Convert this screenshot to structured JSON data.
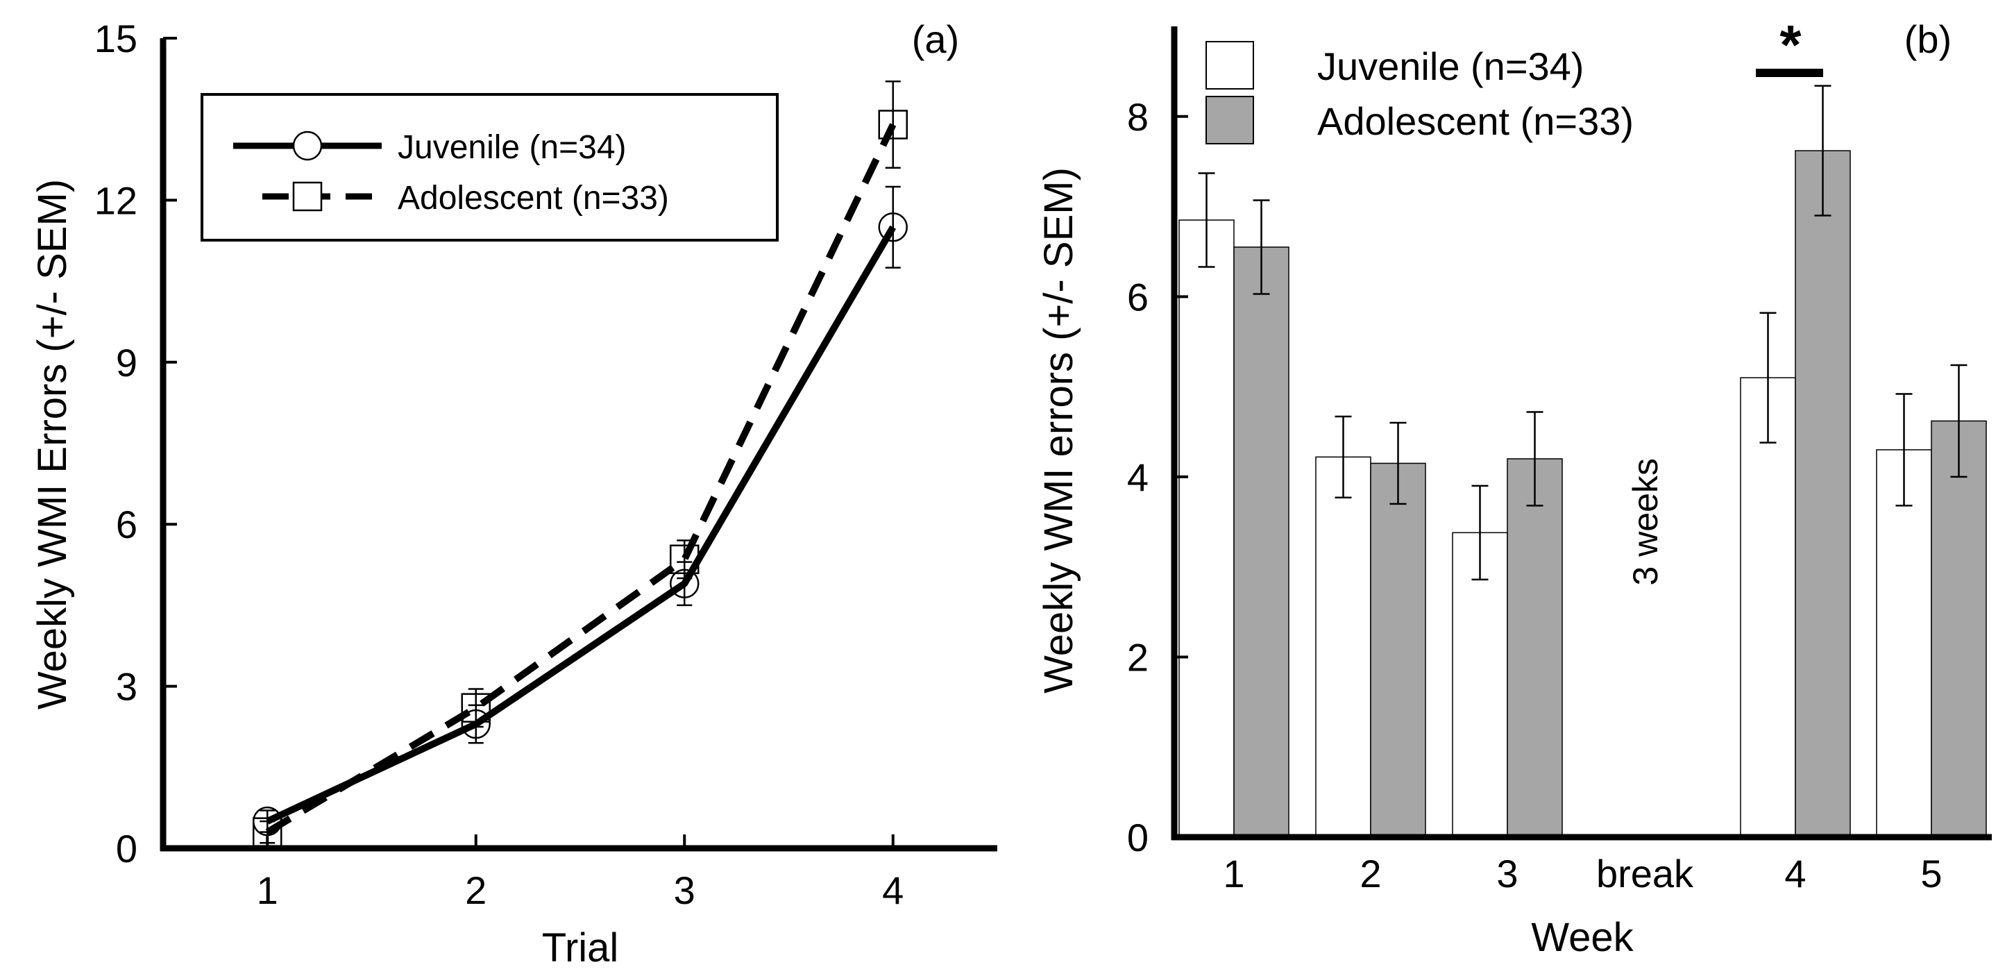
{
  "chart_data": [
    {
      "panel": "(a)",
      "type": "line",
      "title": "",
      "xlabel": "Trial",
      "ylabel": "Weekly WMI Errors (+/- SEM)",
      "x": [
        1,
        2,
        3,
        4
      ],
      "xlim": [
        0.5,
        4.5
      ],
      "ylim": [
        0,
        15
      ],
      "yticks": [
        0,
        3,
        6,
        9,
        12,
        15
      ],
      "series": [
        {
          "name": "Juvenile (n=34)",
          "style": "solid",
          "marker": "circle",
          "values": [
            0.5,
            2.3,
            4.9,
            11.5
          ],
          "sem": [
            0.2,
            0.35,
            0.4,
            0.75
          ]
        },
        {
          "name": "Adolescent (n=33)",
          "style": "dashed",
          "marker": "square",
          "values": [
            0.3,
            2.6,
            5.35,
            13.4
          ],
          "sem": [
            0.2,
            0.35,
            0.35,
            0.8
          ]
        }
      ],
      "legend": "top-left"
    },
    {
      "panel": "(b)",
      "type": "bar",
      "title": "",
      "xlabel": "Week",
      "ylabel": "Weekly WMI errors (+/- SEM)",
      "categories": [
        "1",
        "2",
        "3",
        "break",
        "4",
        "5"
      ],
      "ylim": [
        0,
        9
      ],
      "yticks": [
        0,
        2,
        4,
        6,
        8
      ],
      "series": [
        {
          "name": "Juvenile (n=34)",
          "color": "#ffffff",
          "values": [
            6.85,
            4.22,
            3.38,
            null,
            5.1,
            4.3
          ],
          "sem": [
            0.52,
            0.45,
            0.52,
            null,
            0.72,
            0.62
          ]
        },
        {
          "name": "Adolescent (n=33)",
          "color": "#a6a6a6",
          "values": [
            6.55,
            4.15,
            4.2,
            null,
            7.62,
            4.62
          ],
          "sem": [
            0.52,
            0.45,
            0.52,
            null,
            0.72,
            0.62
          ]
        }
      ],
      "annotations": [
        {
          "text": "3 weeks",
          "category": "break"
        },
        {
          "text": "*",
          "category": "4"
        }
      ],
      "legend": "top-left"
    }
  ]
}
